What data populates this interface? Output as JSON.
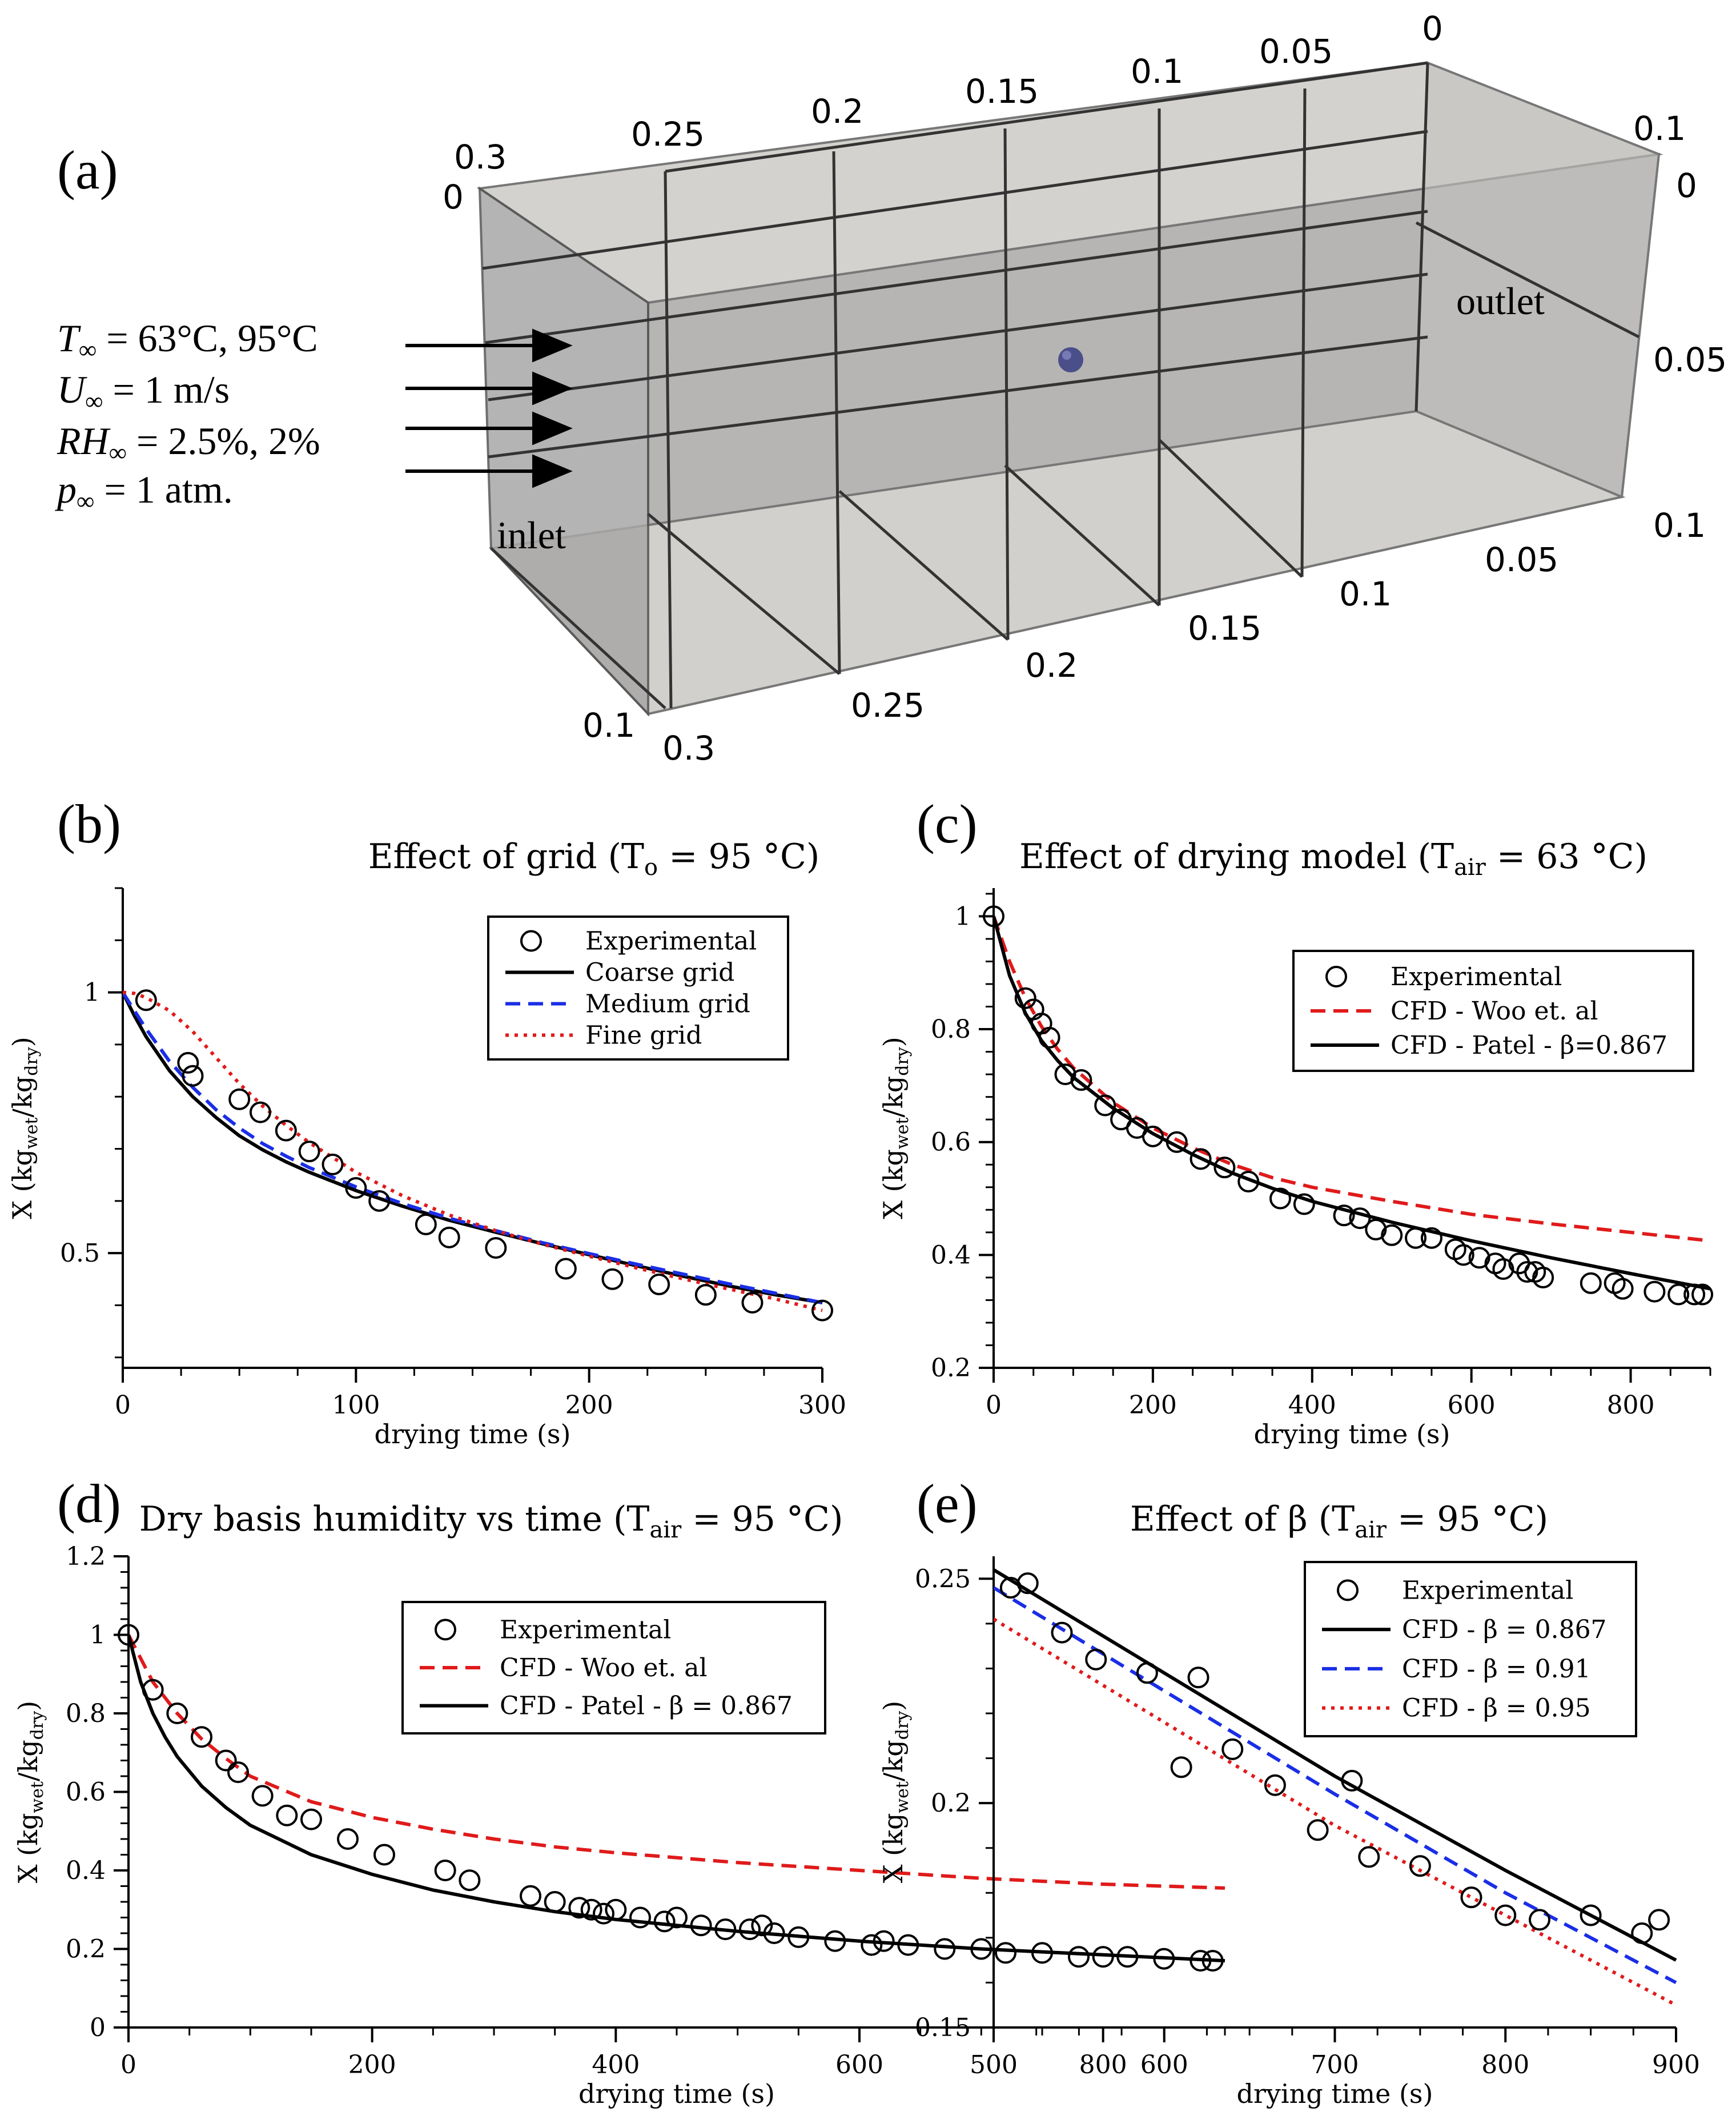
{
  "panel_a": {
    "label": "(a)",
    "inlet_label": "inlet",
    "outlet_label": "outlet",
    "conditions": [
      {
        "sym": "T",
        "sub": "∞",
        "rest": " = 63°C, 95°C"
      },
      {
        "sym": "U",
        "sub": "∞",
        "rest": " = 1 m/s"
      },
      {
        "sym": "RH",
        "sub": "∞",
        "rest": " = 2.5%, 2%"
      },
      {
        "sym": "p",
        "sub": "∞",
        "rest": " = 1 atm."
      }
    ],
    "top_x_ticks": [
      "0.3",
      "0.25",
      "0.2",
      "0.15",
      "0.1",
      "0.05",
      "0"
    ],
    "top_right_ticks": [
      "0.1",
      "0"
    ],
    "right_ticks": [
      "0.05",
      "0.1"
    ],
    "bottom_ticks": [
      "0.05",
      "0.1",
      "0.15",
      "0.2",
      "0.25",
      "0.3"
    ],
    "left_ticks": [
      "0",
      "0.1"
    ],
    "colors": {
      "box_fill": "#c8c6c2",
      "particle": "#4a4f8a"
    }
  },
  "chart_data": [
    {
      "id": "b",
      "panel_label": "(b)",
      "type": "line",
      "title": "Effect of grid (T",
      "title_sub": "o",
      "title_rest": " = 95 °C)",
      "xlabel": "drying time (s)",
      "ylabel": "X (kg",
      "ylabel_sub1": "wet",
      "ylabel_mid": "/kg",
      "ylabel_sub2": "dry",
      "ylabel_end": ")",
      "xlim": [
        0,
        300
      ],
      "ylim": [
        0.28,
        1.2
      ],
      "xticks": [
        0,
        100,
        200,
        300
      ],
      "yticks": [
        0.5,
        1
      ],
      "ytick_labels": [
        "0.5",
        "1"
      ],
      "legend": [
        "Experimental",
        "Coarse grid",
        "Medium grid",
        "Fine grid"
      ],
      "series": [
        {
          "name": "Coarse grid",
          "color": "#000000",
          "style": "solid",
          "x": [
            0,
            5,
            10,
            20,
            30,
            40,
            50,
            60,
            70,
            80,
            100,
            120,
            140,
            160,
            180,
            200,
            220,
            240,
            260,
            280,
            300
          ],
          "y": [
            1.0,
            0.955,
            0.915,
            0.85,
            0.8,
            0.76,
            0.725,
            0.698,
            0.675,
            0.655,
            0.62,
            0.59,
            0.563,
            0.54,
            0.518,
            0.497,
            0.476,
            0.456,
            0.437,
            0.42,
            0.405
          ]
        },
        {
          "name": "Medium grid",
          "color": "#1a2ee6",
          "style": "dashed",
          "x": [
            0,
            5,
            10,
            20,
            30,
            40,
            50,
            60,
            70,
            80,
            100,
            120,
            140,
            160,
            180,
            200,
            220,
            240,
            260,
            280,
            300
          ],
          "y": [
            1.0,
            0.965,
            0.93,
            0.868,
            0.818,
            0.775,
            0.74,
            0.71,
            0.686,
            0.664,
            0.627,
            0.595,
            0.567,
            0.543,
            0.52,
            0.499,
            0.479,
            0.46,
            0.441,
            0.423,
            0.405
          ]
        },
        {
          "name": "Fine grid",
          "color": "#e01a1a",
          "style": "dotted",
          "x": [
            0,
            5,
            10,
            20,
            30,
            40,
            50,
            60,
            70,
            80,
            100,
            120,
            140,
            160,
            180,
            200,
            220,
            240,
            260,
            280,
            300
          ],
          "y": [
            1.0,
            0.998,
            0.99,
            0.965,
            0.925,
            0.875,
            0.825,
            0.782,
            0.745,
            0.712,
            0.655,
            0.61,
            0.573,
            0.543,
            0.517,
            0.494,
            0.472,
            0.451,
            0.431,
            0.412,
            0.39
          ]
        },
        {
          "name": "Experimental",
          "marker": "circle",
          "x": [
            10,
            28,
            30,
            50,
            59,
            70,
            80,
            90,
            100,
            110,
            130,
            140,
            160,
            190,
            210,
            230,
            250,
            270,
            300
          ],
          "y": [
            0.985,
            0.865,
            0.84,
            0.795,
            0.77,
            0.735,
            0.695,
            0.67,
            0.625,
            0.6,
            0.555,
            0.53,
            0.51,
            0.47,
            0.45,
            0.44,
            0.42,
            0.405,
            0.39
          ]
        }
      ]
    },
    {
      "id": "c",
      "panel_label": "(c)",
      "type": "line",
      "title": "Effect of drying model (T",
      "title_sub": "air",
      "title_rest": " = 63 °C)",
      "xlabel": "drying time (s)",
      "ylabel": "X (kg",
      "ylabel_sub1": "wet",
      "ylabel_mid": "/kg",
      "ylabel_sub2": "dry",
      "ylabel_end": ")",
      "xlim": [
        0,
        900
      ],
      "ylim": [
        0.2,
        1.05
      ],
      "xticks": [
        0,
        200,
        400,
        600,
        800
      ],
      "yticks": [
        0.2,
        0.4,
        0.6,
        0.8,
        1
      ],
      "ytick_labels": [
        "0.2",
        "0.4",
        "0.6",
        "0.8",
        "1"
      ],
      "legend": [
        "Experimental",
        "CFD - Woo et. al",
        "CFD - Patel - β=0.867"
      ],
      "series": [
        {
          "name": "CFD - Woo et. al",
          "color": "#e01a1a",
          "style": "dashed",
          "x": [
            0,
            20,
            40,
            60,
            80,
            100,
            150,
            200,
            250,
            300,
            350,
            400,
            500,
            600,
            700,
            800,
            900
          ],
          "y": [
            1.0,
            0.92,
            0.855,
            0.805,
            0.765,
            0.732,
            0.67,
            0.625,
            0.59,
            0.56,
            0.537,
            0.52,
            0.495,
            0.472,
            0.455,
            0.44,
            0.425
          ]
        },
        {
          "name": "CFD - Patel - β=0.867",
          "color": "#000000",
          "style": "solid",
          "x": [
            0,
            20,
            40,
            60,
            80,
            100,
            150,
            200,
            250,
            300,
            350,
            400,
            500,
            600,
            700,
            800,
            900
          ],
          "y": [
            1.0,
            0.895,
            0.828,
            0.78,
            0.745,
            0.715,
            0.66,
            0.615,
            0.578,
            0.545,
            0.518,
            0.495,
            0.458,
            0.425,
            0.395,
            0.367,
            0.34
          ]
        },
        {
          "name": "Experimental",
          "marker": "circle",
          "x": [
            0,
            40,
            50,
            60,
            70,
            90,
            110,
            140,
            160,
            180,
            200,
            230,
            260,
            290,
            320,
            360,
            390,
            440,
            460,
            480,
            500,
            530,
            550,
            580,
            590,
            610,
            630,
            640,
            660,
            670,
            680,
            690,
            750,
            780,
            790,
            830,
            860,
            880,
            890
          ],
          "y": [
            1.0,
            0.855,
            0.835,
            0.81,
            0.785,
            0.72,
            0.71,
            0.665,
            0.64,
            0.625,
            0.61,
            0.6,
            0.57,
            0.555,
            0.53,
            0.5,
            0.49,
            0.47,
            0.465,
            0.445,
            0.435,
            0.43,
            0.43,
            0.41,
            0.4,
            0.395,
            0.385,
            0.375,
            0.385,
            0.37,
            0.37,
            0.36,
            0.35,
            0.35,
            0.34,
            0.335,
            0.33,
            0.33,
            0.33
          ]
        }
      ]
    },
    {
      "id": "d",
      "panel_label": "(d)",
      "type": "line",
      "title": "Dry basis humidity vs time (T",
      "title_sub": "air",
      "title_rest": " = 95 °C)",
      "xlabel": "drying time (s)",
      "ylabel": "X (kg",
      "ylabel_sub1": "wet",
      "ylabel_mid": "/kg",
      "ylabel_sub2": "dry",
      "ylabel_end": ")",
      "xlim": [
        0,
        900
      ],
      "ylim": [
        0,
        1.2
      ],
      "xticks": [
        0,
        200,
        400,
        600,
        800
      ],
      "yticks": [
        0,
        0.2,
        0.4,
        0.6,
        0.8,
        1,
        1.2
      ],
      "ytick_labels": [
        "0",
        "0.2",
        "0.4",
        "0.6",
        "0.8",
        "1",
        "1.2"
      ],
      "legend": [
        "Experimental",
        "CFD - Woo et. al",
        "CFD - Patel - β = 0.867"
      ],
      "series": [
        {
          "name": "CFD - Woo et. al",
          "color": "#e01a1a",
          "style": "dashed",
          "x": [
            0,
            20,
            40,
            60,
            80,
            100,
            150,
            200,
            250,
            300,
            350,
            400,
            500,
            600,
            700,
            800,
            900
          ],
          "y": [
            1.0,
            0.88,
            0.8,
            0.735,
            0.685,
            0.64,
            0.575,
            0.535,
            0.505,
            0.48,
            0.46,
            0.445,
            0.42,
            0.4,
            0.38,
            0.365,
            0.355
          ]
        },
        {
          "name": "CFD - Patel - β = 0.867",
          "color": "#000000",
          "style": "solid",
          "x": [
            0,
            10,
            20,
            30,
            40,
            60,
            80,
            100,
            150,
            200,
            250,
            300,
            350,
            400,
            500,
            600,
            700,
            800,
            900
          ],
          "y": [
            1.0,
            0.88,
            0.8,
            0.74,
            0.69,
            0.615,
            0.56,
            0.515,
            0.44,
            0.39,
            0.35,
            0.32,
            0.295,
            0.275,
            0.245,
            0.22,
            0.2,
            0.185,
            0.17
          ]
        },
        {
          "name": "Experimental",
          "marker": "circle",
          "x": [
            0,
            20,
            40,
            60,
            80,
            90,
            110,
            130,
            150,
            180,
            210,
            260,
            280,
            330,
            350,
            370,
            380,
            390,
            400,
            420,
            440,
            450,
            470,
            490,
            510,
            520,
            530,
            550,
            580,
            610,
            620,
            640,
            670,
            700,
            720,
            750,
            780,
            800,
            820,
            850,
            880,
            890
          ],
          "y": [
            1.0,
            0.86,
            0.8,
            0.74,
            0.68,
            0.65,
            0.59,
            0.54,
            0.53,
            0.48,
            0.44,
            0.4,
            0.375,
            0.335,
            0.32,
            0.305,
            0.3,
            0.29,
            0.3,
            0.28,
            0.27,
            0.28,
            0.26,
            0.25,
            0.25,
            0.26,
            0.24,
            0.23,
            0.22,
            0.21,
            0.22,
            0.21,
            0.2,
            0.2,
            0.19,
            0.19,
            0.18,
            0.18,
            0.18,
            0.175,
            0.17,
            0.17
          ]
        }
      ]
    },
    {
      "id": "e",
      "panel_label": "(e)",
      "type": "line",
      "title": "Effect of β (T",
      "title_sub": "air",
      "title_rest": " = 95 °C)",
      "xlabel": "drying time (s)",
      "ylabel": "X (kg",
      "ylabel_sub1": "wet",
      "ylabel_mid": "/kg",
      "ylabel_sub2": "dry",
      "ylabel_end": ")",
      "xlim": [
        500,
        900
      ],
      "ylim": [
        0.15,
        0.255
      ],
      "xticks": [
        500,
        600,
        700,
        800,
        900
      ],
      "yticks": [
        0.15,
        0.2,
        0.25
      ],
      "ytick_labels": [
        "0.15",
        "0.2",
        "0.25"
      ],
      "legend": [
        "Experimental",
        "CFD - β = 0.867",
        "CFD - β = 0.91",
        "CFD - β = 0.95"
      ],
      "series": [
        {
          "name": "CFD - β = 0.867",
          "color": "#000000",
          "style": "solid",
          "x": [
            500,
            600,
            700,
            800,
            900
          ],
          "y": [
            0.252,
            0.229,
            0.206,
            0.185,
            0.165
          ]
        },
        {
          "name": "CFD - β = 0.91",
          "color": "#1a2ee6",
          "style": "dashed",
          "x": [
            500,
            600,
            700,
            800,
            900
          ],
          "y": [
            0.248,
            0.225,
            0.202,
            0.18,
            0.16
          ]
        },
        {
          "name": "CFD - β = 0.95",
          "color": "#e01a1a",
          "style": "dotted",
          "x": [
            500,
            600,
            700,
            800,
            900
          ],
          "y": [
            0.241,
            0.218,
            0.195,
            0.175,
            0.155
          ]
        },
        {
          "name": "Experimental",
          "marker": "circle",
          "x": [
            510,
            520,
            540,
            560,
            590,
            610,
            620,
            640,
            665,
            690,
            710,
            720,
            750,
            780,
            800,
            820,
            850,
            880,
            890
          ],
          "y": [
            0.248,
            0.249,
            0.238,
            0.232,
            0.229,
            0.208,
            0.228,
            0.212,
            0.204,
            0.194,
            0.205,
            0.188,
            0.186,
            0.179,
            0.175,
            0.174,
            0.175,
            0.171,
            0.174
          ]
        }
      ]
    }
  ]
}
